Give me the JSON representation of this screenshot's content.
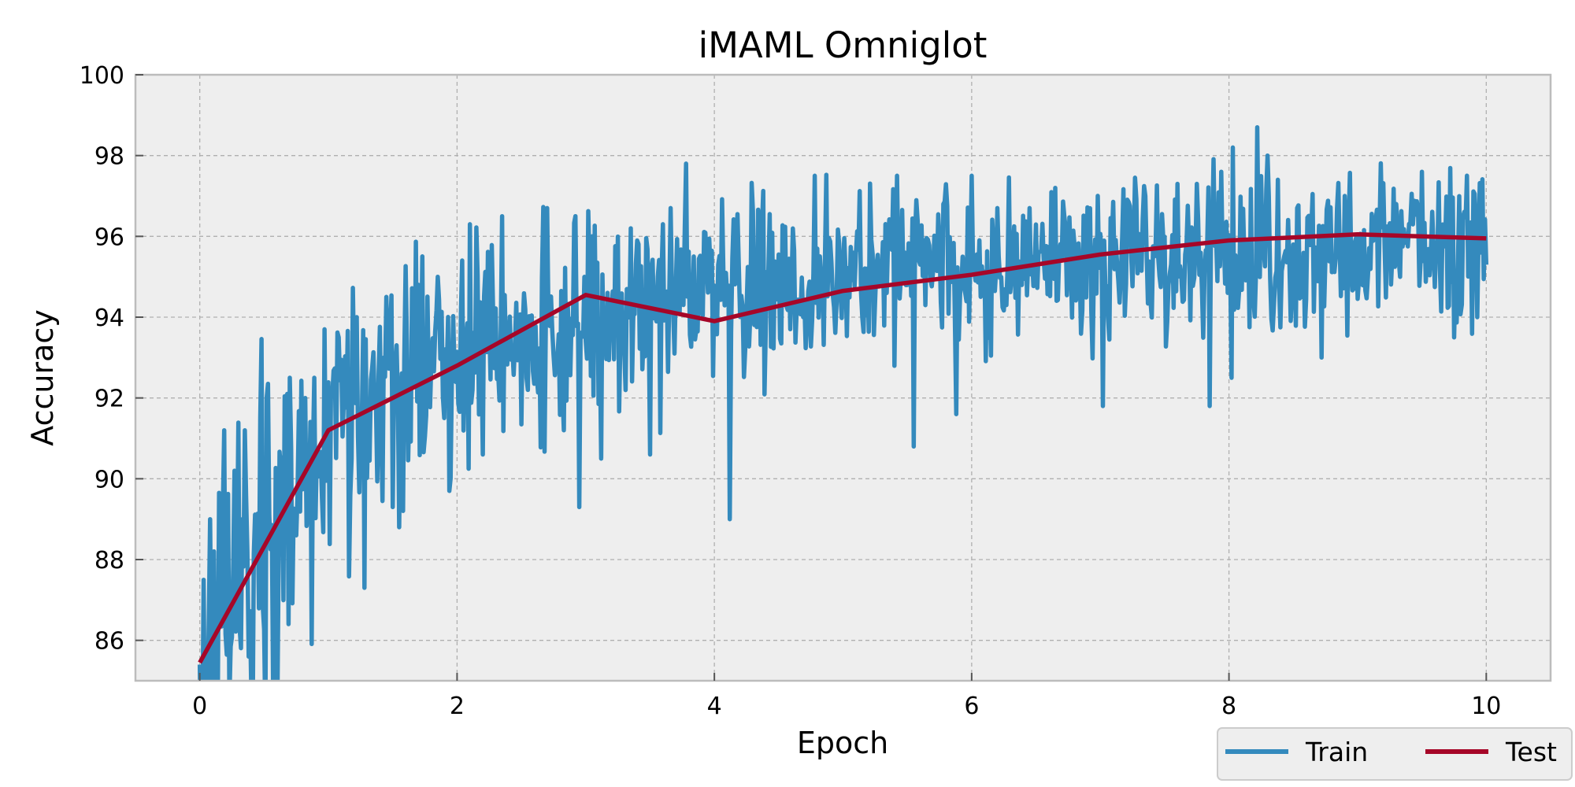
{
  "chart_data": {
    "type": "line",
    "title": "iMAML Omniglot",
    "xlabel": "Epoch",
    "ylabel": "Accuracy",
    "xlim": [
      -0.5,
      10.5
    ],
    "ylim": [
      85,
      100
    ],
    "xticks": [
      0,
      2,
      4,
      6,
      8,
      10
    ],
    "yticks": [
      86,
      88,
      90,
      92,
      94,
      96,
      98,
      100
    ],
    "grid": true,
    "legend_position": "bottom-right",
    "background": "#eeeeee",
    "series": [
      {
        "name": "Train",
        "color": "#348abd",
        "trend": [
          [
            0,
            85.4
          ],
          [
            0.25,
            87.6
          ],
          [
            0.5,
            89.0
          ],
          [
            0.75,
            89.8
          ],
          [
            1.0,
            90.6
          ],
          [
            1.5,
            91.8
          ],
          [
            2.0,
            92.9
          ],
          [
            2.5,
            93.6
          ],
          [
            3.0,
            94.0
          ],
          [
            3.5,
            94.3
          ],
          [
            4.0,
            94.6
          ],
          [
            5.0,
            94.9
          ],
          [
            6.0,
            95.1
          ],
          [
            7.0,
            95.3
          ],
          [
            8.0,
            95.6
          ],
          [
            9.0,
            95.7
          ],
          [
            10.0,
            95.8
          ]
        ],
        "noise": [
          [
            0,
            2.6
          ],
          [
            0.5,
            2.2
          ],
          [
            1.0,
            1.7
          ],
          [
            2.0,
            1.4
          ],
          [
            3.0,
            1.25
          ],
          [
            4.0,
            1.15
          ],
          [
            6.0,
            1.0
          ],
          [
            8.0,
            0.95
          ],
          [
            10.0,
            0.9
          ]
        ],
        "points_per_epoch": 100,
        "seed": 17,
        "anchors": [
          [
            0,
            85.4
          ],
          [
            0.03,
            87.5
          ],
          [
            0.06,
            84.5
          ],
          [
            0.08,
            89.0
          ],
          [
            0.12,
            84.0
          ],
          [
            0.16,
            87.0
          ],
          [
            0.19,
            91.2
          ],
          [
            0.23,
            84.5
          ],
          [
            0.27,
            90.2
          ],
          [
            0.35,
            91.2
          ],
          [
            0.41,
            83.5
          ],
          [
            0.47,
            91.5
          ],
          [
            0.52,
            92.0
          ],
          [
            0.57,
            84.8
          ],
          [
            0.6,
            83.2
          ],
          [
            0.63,
            90.2
          ],
          [
            0.7,
            92.5
          ],
          [
            0.75,
            88.6
          ],
          [
            0.82,
            92.0
          ],
          [
            0.89,
            92.5
          ],
          [
            0.95,
            89.5
          ],
          [
            0.97,
            93.7
          ],
          [
            1.08,
            93.5
          ],
          [
            1.2,
            92.6
          ],
          [
            1.22,
            94.0
          ],
          [
            1.28,
            87.3
          ],
          [
            1.45,
            94.5
          ],
          [
            1.5,
            89.3
          ],
          [
            1.55,
            88.8
          ],
          [
            1.7,
            94.8
          ],
          [
            1.85,
            95.0
          ],
          [
            1.94,
            89.7
          ],
          [
            2.1,
            96.3
          ],
          [
            2.2,
            90.6
          ],
          [
            2.35,
            96.5
          ],
          [
            2.55,
            92.2
          ],
          [
            2.7,
            96.7
          ],
          [
            2.83,
            91.2
          ],
          [
            2.92,
            96.5
          ],
          [
            2.95,
            89.3
          ],
          [
            3.05,
            96.0
          ],
          [
            3.12,
            90.5
          ],
          [
            3.35,
            96.2
          ],
          [
            3.5,
            90.6
          ],
          [
            3.6,
            96.3
          ],
          [
            3.78,
            97.8
          ],
          [
            3.9,
            94.1
          ],
          [
            4.03,
            95.3
          ],
          [
            4.12,
            89.0
          ],
          [
            4.35,
            96.3
          ],
          [
            4.78,
            97.5
          ],
          [
            5.0,
            95.3
          ],
          [
            5.42,
            97.5
          ],
          [
            5.55,
            90.8
          ],
          [
            5.78,
            96.8
          ],
          [
            5.88,
            91.6
          ],
          [
            6.0,
            97.5
          ],
          [
            6.2,
            96.7
          ],
          [
            6.45,
            96.7
          ],
          [
            6.65,
            97.2
          ],
          [
            7.02,
            91.8
          ],
          [
            7.35,
            97.0
          ],
          [
            7.6,
            97.3
          ],
          [
            7.75,
            97.3
          ],
          [
            7.85,
            91.8
          ],
          [
            7.94,
            97.6
          ],
          [
            8.02,
            92.5
          ],
          [
            8.03,
            98.2
          ],
          [
            8.22,
            98.7
          ],
          [
            8.3,
            98.0
          ],
          [
            8.5,
            95.8
          ],
          [
            8.72,
            93.0
          ],
          [
            8.9,
            97.0
          ],
          [
            9.3,
            96.8
          ],
          [
            9.5,
            97.6
          ],
          [
            9.75,
            93.5
          ],
          [
            9.85,
            97.5
          ],
          [
            9.93,
            94.0
          ],
          [
            10.0,
            95.3
          ]
        ]
      },
      {
        "name": "Test",
        "color": "#a60628",
        "x": [
          0,
          1,
          2,
          3,
          4,
          5,
          6,
          7,
          8,
          9,
          10
        ],
        "y": [
          85.45,
          91.2,
          92.8,
          94.55,
          93.9,
          94.65,
          95.05,
          95.55,
          95.9,
          96.05,
          95.95
        ]
      }
    ]
  }
}
